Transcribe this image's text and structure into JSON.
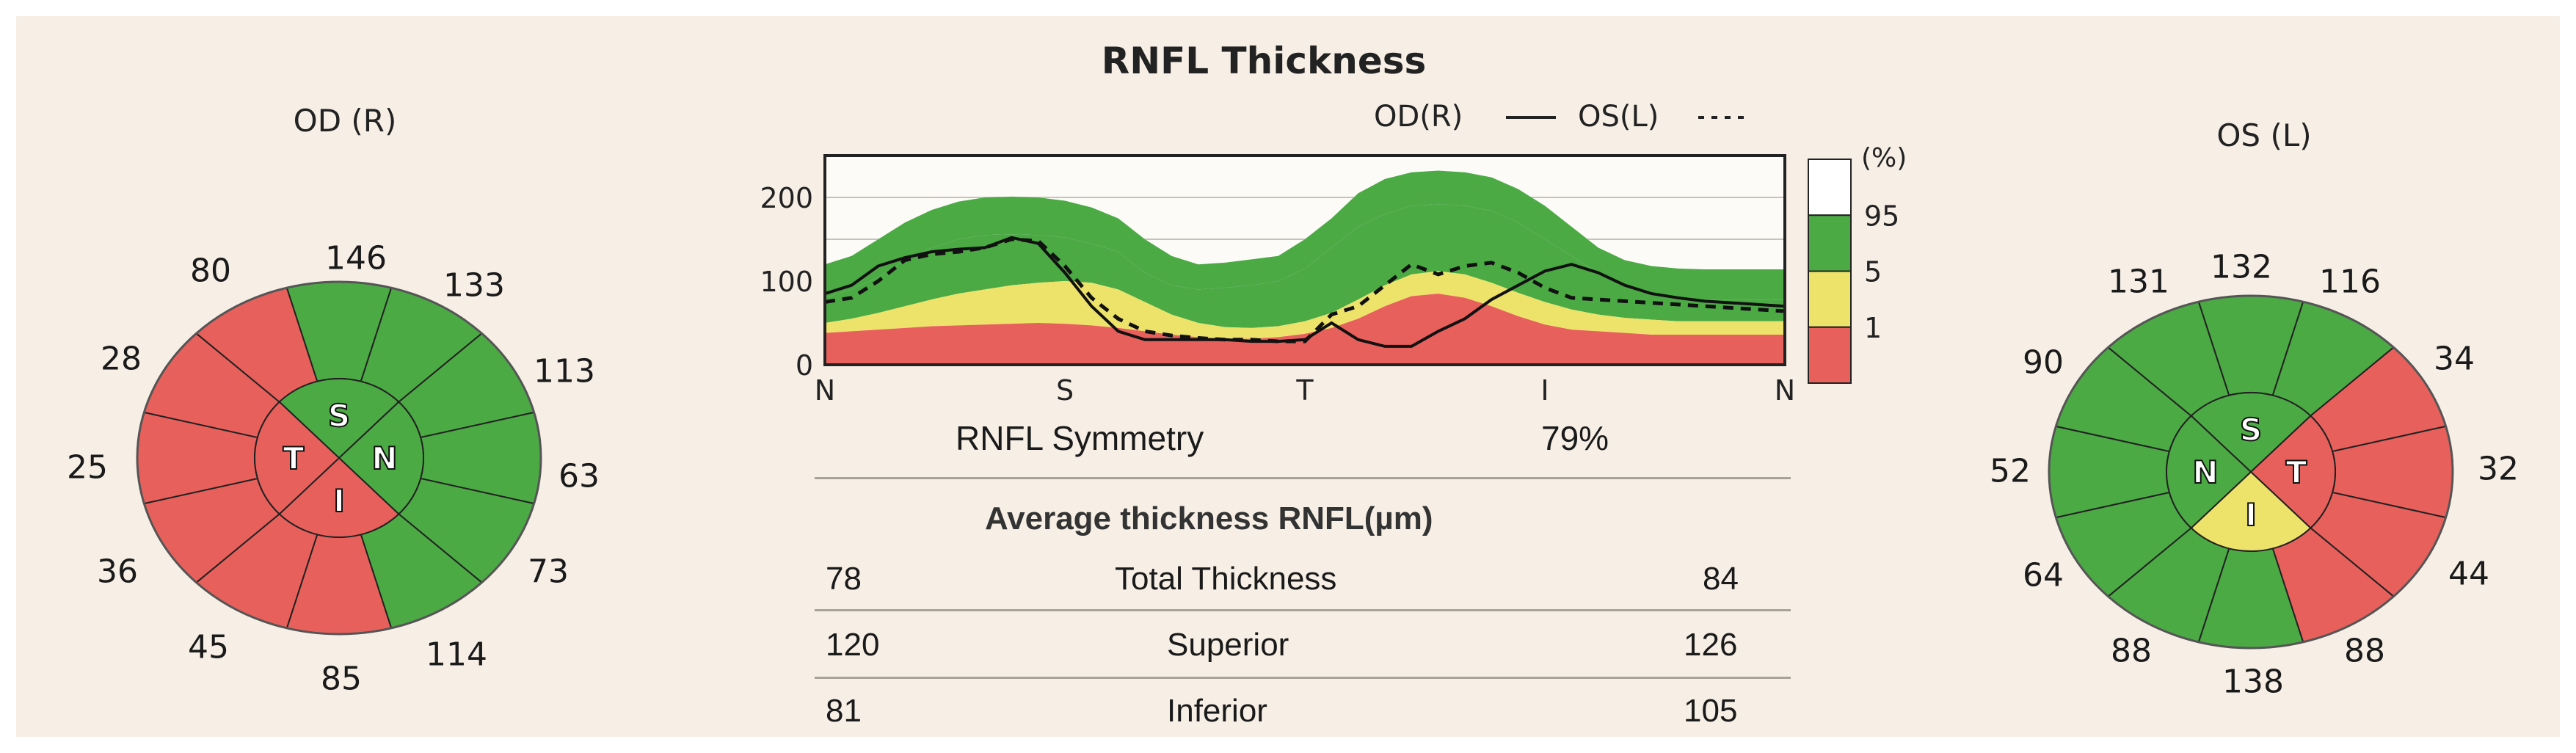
{
  "od": {
    "label": "OD (R)",
    "clock": [
      "146",
      "133",
      "113",
      "63",
      "73",
      "114",
      "85",
      "45",
      "36",
      "25",
      "28",
      "80"
    ],
    "quadrants": {
      "S": "S",
      "N": "N",
      "I": "I",
      "T": "T"
    },
    "colors": {
      "clock": [
        "green",
        "green",
        "green",
        "green",
        "green",
        "green",
        "red",
        "red",
        "red",
        "red",
        "red",
        "red"
      ],
      "S": "green",
      "N": "green",
      "I": "red",
      "T": "red"
    }
  },
  "os": {
    "label": "OS (L)",
    "clock": [
      "132",
      "116",
      "34",
      "32",
      "44",
      "88",
      "138",
      "88",
      "64",
      "52",
      "90",
      "131"
    ],
    "quadrants": {
      "S": "S",
      "N": "N",
      "I": "I",
      "T": "T"
    },
    "colors": {
      "clock": [
        "green",
        "green",
        "red",
        "red",
        "red",
        "red",
        "green",
        "green",
        "green",
        "green",
        "green",
        "green"
      ],
      "S": "green",
      "N": "green",
      "I": "yellow",
      "T": "red"
    }
  },
  "chart_data": {
    "type": "line",
    "title": "RNFL Thickness",
    "legend": {
      "od": "OD(R)",
      "os": "OS(L)",
      "placement": "top-right"
    },
    "x_ticks": [
      "N",
      "S",
      "T",
      "I",
      "N"
    ],
    "ylim": [
      0,
      250
    ],
    "y_ticks": [
      "200",
      "100",
      "0"
    ],
    "percentile_scale": {
      "unit": "(%)",
      "labels": [
        "95",
        "5",
        "1"
      ]
    },
    "x": [
      0,
      10,
      20,
      30,
      40,
      50,
      60,
      70,
      80,
      90,
      100,
      110,
      120,
      130,
      140,
      150,
      160,
      170,
      180,
      190,
      200,
      210,
      220,
      230,
      240,
      250,
      260,
      270,
      280,
      290,
      300,
      310,
      320,
      330,
      340,
      350,
      360
    ],
    "bands": {
      "p1": [
        38,
        40,
        42,
        44,
        46,
        47,
        48,
        49,
        50,
        49,
        47,
        44,
        40,
        36,
        33,
        31,
        31,
        33,
        37,
        44,
        55,
        70,
        82,
        85,
        80,
        70,
        58,
        48,
        42,
        40,
        38,
        36,
        36,
        36,
        36,
        36,
        36
      ],
      "p5": [
        50,
        55,
        62,
        70,
        78,
        85,
        90,
        95,
        98,
        100,
        98,
        90,
        75,
        60,
        50,
        45,
        44,
        46,
        52,
        62,
        78,
        95,
        108,
        112,
        108,
        98,
        86,
        75,
        66,
        60,
        56,
        54,
        52,
        52,
        52,
        52,
        52
      ],
      "p95": [
        80,
        90,
        105,
        125,
        140,
        150,
        155,
        156,
        155,
        152,
        145,
        135,
        110,
        95,
        90,
        92,
        95,
        100,
        115,
        140,
        165,
        180,
        190,
        192,
        190,
        184,
        170,
        150,
        130,
        110,
        95,
        85,
        80,
        78,
        78,
        78,
        78
      ],
      "p99": [
        120,
        130,
        150,
        170,
        185,
        195,
        200,
        201,
        200,
        196,
        188,
        175,
        150,
        130,
        120,
        122,
        126,
        130,
        150,
        175,
        205,
        222,
        230,
        232,
        230,
        224,
        210,
        190,
        165,
        140,
        125,
        118,
        115,
        114,
        114,
        114,
        114
      ]
    },
    "series": [
      {
        "name": "OD(R)",
        "values": [
          85,
          95,
          118,
          128,
          135,
          138,
          140,
          152,
          145,
          110,
          70,
          40,
          30,
          30,
          30,
          30,
          28,
          28,
          30,
          50,
          30,
          22,
          22,
          40,
          55,
          78,
          95,
          112,
          120,
          110,
          95,
          85,
          80,
          76,
          74,
          72,
          70
        ]
      },
      {
        "name": "OS(L)",
        "values": [
          75,
          80,
          100,
          125,
          132,
          135,
          140,
          150,
          148,
          118,
          80,
          55,
          40,
          35,
          32,
          30,
          30,
          28,
          28,
          60,
          70,
          95,
          120,
          108,
          118,
          122,
          110,
          92,
          80,
          78,
          76,
          74,
          72,
          70,
          68,
          66,
          64
        ]
      }
    ],
    "symmetry": {
      "label": "RNFL Symmetry",
      "value": "79%"
    },
    "table": {
      "title": "Average thickness RNFL(µm)",
      "rows": [
        {
          "od": "78",
          "label": "Total Thickness",
          "os": "84"
        },
        {
          "od": "120",
          "label": "Superior",
          "os": "126"
        },
        {
          "od": "81",
          "label": "Inferior",
          "os": "105"
        }
      ]
    }
  },
  "colors": {
    "green": "#4caa45",
    "red": "#e8605c",
    "yellow": "#ede36a",
    "white": "#ffffff",
    "background": "#f7efe6"
  }
}
